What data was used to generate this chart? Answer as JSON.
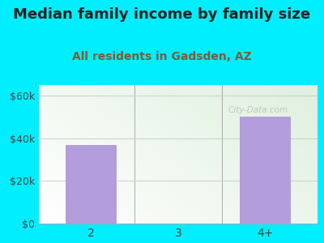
{
  "title": "Median family income by family size",
  "subtitle": "All residents in Gadsden, AZ",
  "categories": [
    "2",
    "3",
    "4+"
  ],
  "values": [
    37000,
    0,
    50000
  ],
  "bar_color": "#b39ddb",
  "background_color": "#00eeff",
  "plot_bg_colors": [
    "#ffffff",
    "#dff0df"
  ],
  "ylim": [
    0,
    65000
  ],
  "yticks": [
    0,
    20000,
    40000,
    60000
  ],
  "ytick_labels": [
    "$0",
    "$20k",
    "$40k",
    "$60k"
  ],
  "title_fontsize": 13,
  "subtitle_fontsize": 10,
  "title_color": "#222222",
  "subtitle_color": "#7a5c3a",
  "watermark": "City-Data.com",
  "bar_width": 0.58
}
